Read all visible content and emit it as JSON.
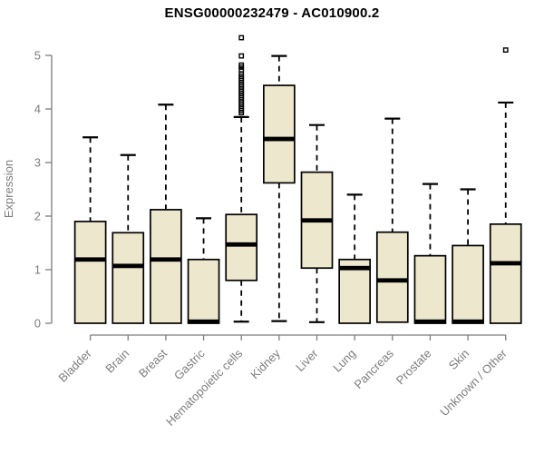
{
  "title": "ENSG00000232479 - AC010900.2",
  "chart_data": {
    "type": "boxplot",
    "title": "ENSG00000232479 - AC010900.2",
    "xlabel": "",
    "ylabel": "Expression",
    "ylim": [
      0,
      5.4
    ],
    "yticks": [
      0,
      1,
      2,
      3,
      4,
      5
    ],
    "grid": false,
    "legend": "none",
    "colors": {
      "box_fill": "#EDE7CD",
      "box_stroke": "#000000",
      "median": "#000000",
      "axis": "#7D7D7D",
      "outlier": "#000000",
      "title": "#000000"
    },
    "categories": [
      "Bladder",
      "Brain",
      "Breast",
      "Gastric",
      "Hematopoietic cells",
      "Kidney",
      "Liver",
      "Lung",
      "Pancreas",
      "Prostate",
      "Skin",
      "Unknown / Other"
    ],
    "series": [
      {
        "name": "Bladder",
        "whisker_low": 0,
        "q1": 0,
        "median": 1.19,
        "q3": 1.9,
        "whisker_high": 3.47,
        "outliers": []
      },
      {
        "name": "Brain",
        "whisker_low": 0,
        "q1": 0,
        "median": 1.07,
        "q3": 1.69,
        "whisker_high": 3.14,
        "outliers": []
      },
      {
        "name": "Breast",
        "whisker_low": 0,
        "q1": 0,
        "median": 1.19,
        "q3": 2.12,
        "whisker_high": 4.08,
        "outliers": []
      },
      {
        "name": "Gastric",
        "whisker_low": 0,
        "q1": 0,
        "median": 0.03,
        "q3": 1.19,
        "whisker_high": 1.96,
        "outliers": []
      },
      {
        "name": "Hematopoietic cells",
        "whisker_low": 0.03,
        "q1": 0.8,
        "median": 1.47,
        "q3": 2.03,
        "whisker_high": 3.85,
        "outliers": [
          5.33,
          4.99,
          4.82,
          4.78,
          4.73,
          4.65,
          4.61,
          4.57,
          4.53,
          4.49,
          4.45,
          4.41,
          4.37,
          4.33,
          4.29,
          4.25,
          4.21,
          4.17,
          4.13,
          4.09,
          4.05,
          4.01,
          3.97,
          3.93
        ]
      },
      {
        "name": "Kidney",
        "whisker_low": 0.04,
        "q1": 2.62,
        "median": 3.44,
        "q3": 4.44,
        "whisker_high": 4.99,
        "outliers": []
      },
      {
        "name": "Liver",
        "whisker_low": 0.02,
        "q1": 1.03,
        "median": 1.92,
        "q3": 2.82,
        "whisker_high": 3.7,
        "outliers": []
      },
      {
        "name": "Lung",
        "whisker_low": 0,
        "q1": 0,
        "median": 1.03,
        "q3": 1.19,
        "whisker_high": 2.4,
        "outliers": []
      },
      {
        "name": "Pancreas",
        "whisker_low": 0.02,
        "q1": 0.02,
        "median": 0.8,
        "q3": 1.7,
        "whisker_high": 3.82,
        "outliers": []
      },
      {
        "name": "Prostate",
        "whisker_low": 0,
        "q1": 0,
        "median": 0.03,
        "q3": 1.26,
        "whisker_high": 2.6,
        "outliers": []
      },
      {
        "name": "Skin",
        "whisker_low": 0,
        "q1": 0,
        "median": 0.03,
        "q3": 1.45,
        "whisker_high": 2.5,
        "outliers": []
      },
      {
        "name": "Unknown / Other",
        "whisker_low": 0,
        "q1": 0,
        "median": 1.12,
        "q3": 1.85,
        "whisker_high": 4.12,
        "outliers": [
          5.1
        ]
      }
    ]
  }
}
